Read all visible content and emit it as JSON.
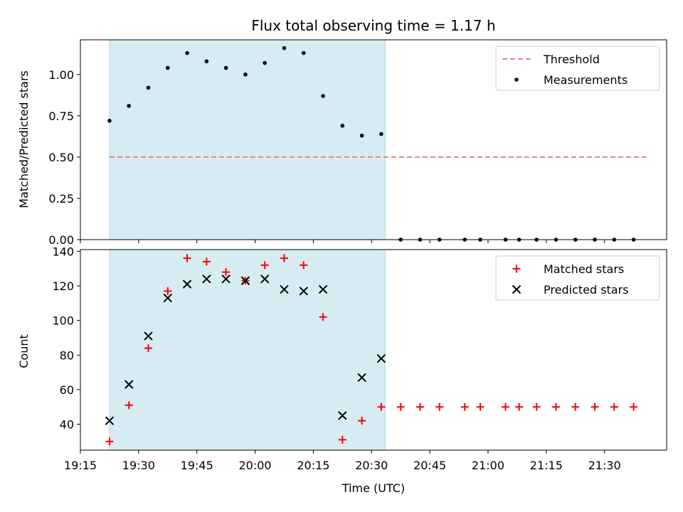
{
  "chart_data": {
    "title": "Flux total observing time = 1.17 h",
    "xlabel": "Time (UTC)",
    "x_ticks": [
      "19:15",
      "19:30",
      "19:45",
      "20:00",
      "20:15",
      "20:30",
      "20:45",
      "21:00",
      "21:15",
      "21:30"
    ],
    "x_tick_minutes": [
      1155,
      1170,
      1185,
      1200,
      1215,
      1230,
      1245,
      1260,
      1275,
      1290
    ],
    "xlim_minutes": [
      1155,
      1306
    ],
    "observing_window_minutes": [
      1162.5,
      1233.5
    ],
    "shade_color": "#add8e6",
    "panels": [
      {
        "type": "scatter",
        "ylabel": "Matched/Predicted stars",
        "ylim": [
          0,
          1.21
        ],
        "y_ticks": [
          "0.00",
          "0.25",
          "0.50",
          "0.75",
          "1.00"
        ],
        "y_tick_values": [
          0,
          0.25,
          0.5,
          0.75,
          1.0
        ],
        "legend": [
          "Threshold",
          "Measurements"
        ],
        "threshold": {
          "name": "Threshold",
          "y": 0.5,
          "x_range": [
            1162.5,
            1301.5
          ],
          "color": "#f08080"
        },
        "measurements": {
          "name": "Measurements",
          "color": "#000000",
          "x": [
            1162.5,
            1167.5,
            1172.5,
            1177.5,
            1182.5,
            1187.5,
            1192.5,
            1197.5,
            1202.5,
            1207.5,
            1212.5,
            1217.5,
            1222.5,
            1227.5,
            1232.5,
            1237.5,
            1242.5,
            1247.5,
            1254,
            1258,
            1264.5,
            1268,
            1272.5,
            1277.5,
            1282.5,
            1287.5,
            1292.5,
            1297.5
          ],
          "y": [
            0.72,
            0.81,
            0.92,
            1.04,
            1.13,
            1.08,
            1.04,
            1.0,
            1.07,
            1.16,
            1.13,
            0.87,
            0.69,
            0.63,
            0.64,
            0,
            0,
            0,
            0,
            0,
            0,
            0,
            0,
            0,
            0,
            0,
            0,
            0
          ]
        }
      },
      {
        "type": "scatter",
        "ylabel": "Count",
        "ylim": [
          25,
          141
        ],
        "y_ticks": [
          "40",
          "60",
          "80",
          "100",
          "120",
          "140"
        ],
        "y_tick_values": [
          40,
          60,
          80,
          100,
          120,
          140
        ],
        "legend": [
          "Matched stars",
          "Predicted stars"
        ],
        "series": [
          {
            "name": "Matched stars",
            "marker": "plus",
            "color": "#ff0000",
            "x": [
              1162.5,
              1167.5,
              1172.5,
              1177.5,
              1182.5,
              1187.5,
              1192.5,
              1197.5,
              1202.5,
              1207.5,
              1212.5,
              1217.5,
              1222.5,
              1227.5,
              1232.5,
              1237.5,
              1242.5,
              1247.5,
              1254,
              1258,
              1264.5,
              1268,
              1272.5,
              1277.5,
              1282.5,
              1287.5,
              1292.5,
              1297.5
            ],
            "y": [
              30,
              51,
              84,
              117,
              136,
              134,
              128,
              123,
              132,
              136,
              132,
              102,
              31,
              42,
              50,
              50,
              50,
              50,
              50,
              50,
              50,
              50,
              50,
              50,
              50,
              50,
              50,
              50
            ]
          },
          {
            "name": "Predicted stars",
            "marker": "x",
            "color": "#000000",
            "x": [
              1162.5,
              1167.5,
              1172.5,
              1177.5,
              1182.5,
              1187.5,
              1192.5,
              1197.5,
              1202.5,
              1207.5,
              1212.5,
              1217.5,
              1222.5,
              1227.5,
              1232.5
            ],
            "y": [
              42,
              63,
              91,
              113,
              121,
              124,
              124,
              123,
              124,
              118,
              117,
              118,
              45,
              67,
              78
            ]
          }
        ]
      }
    ]
  }
}
